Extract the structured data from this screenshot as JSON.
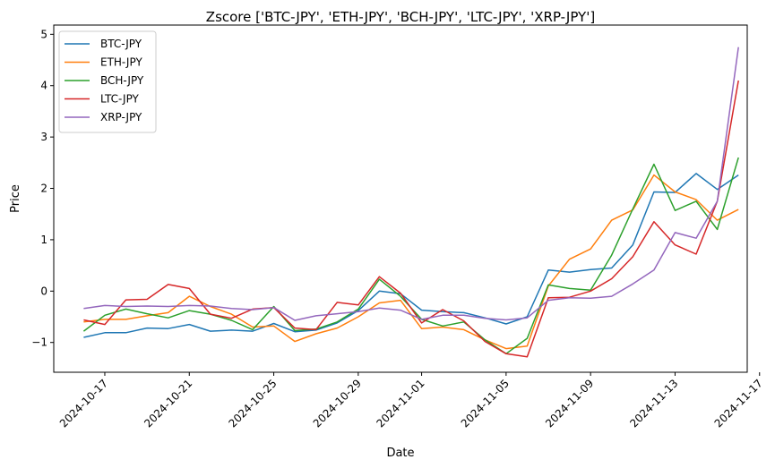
{
  "chart_data": {
    "type": "line",
    "title": "Zscore ['BTC-JPY', 'ETH-JPY', 'BCH-JPY', 'LTC-JPY', 'XRP-JPY']",
    "xlabel": "Date",
    "ylabel": "Price",
    "x_ticks": [
      "2024-10-17",
      "2024-10-21",
      "2024-10-25",
      "2024-10-29",
      "2024-11-01",
      "2024-11-05",
      "2024-11-09",
      "2024-11-13",
      "2024-11-17"
    ],
    "y_ticks": [
      "−1",
      "0",
      "1",
      "2",
      "3",
      "4",
      "5"
    ],
    "ylim": [
      -1.58,
      5.18
    ],
    "xlim": [
      "2024-10-14T14:00",
      "2024-11-16T10:00"
    ],
    "x": [
      "2024-10-16",
      "2024-10-17",
      "2024-10-18",
      "2024-10-19",
      "2024-10-20",
      "2024-10-21",
      "2024-10-22",
      "2024-10-23",
      "2024-10-24",
      "2024-10-25",
      "2024-10-26",
      "2024-10-27",
      "2024-10-28",
      "2024-10-29",
      "2024-10-30",
      "2024-10-31",
      "2024-11-01",
      "2024-11-02",
      "2024-11-03",
      "2024-11-04",
      "2024-11-05",
      "2024-11-06",
      "2024-11-07",
      "2024-11-08",
      "2024-11-09",
      "2024-11-10",
      "2024-11-11",
      "2024-11-12",
      "2024-11-13",
      "2024-11-14",
      "2024-11-15",
      "2024-11-16"
    ],
    "legend_position": "top-left",
    "grid": false,
    "series": [
      {
        "name": "BTC-JPY",
        "color": "#1f77b4",
        "values": [
          -0.9,
          -0.81,
          -0.81,
          -0.72,
          -0.73,
          -0.65,
          -0.78,
          -0.76,
          -0.78,
          -0.63,
          -0.79,
          -0.76,
          -0.62,
          -0.38,
          0.0,
          -0.05,
          -0.37,
          -0.4,
          -0.42,
          -0.52,
          -0.64,
          -0.5,
          0.41,
          0.37,
          0.42,
          0.45,
          0.9,
          1.93,
          1.92,
          2.29,
          1.98,
          2.26
        ]
      },
      {
        "name": "ETH-JPY",
        "color": "#ff7f0e",
        "values": [
          -0.6,
          -0.55,
          -0.55,
          -0.48,
          -0.42,
          -0.1,
          -0.3,
          -0.45,
          -0.7,
          -0.68,
          -0.98,
          -0.83,
          -0.72,
          -0.5,
          -0.23,
          -0.18,
          -0.73,
          -0.7,
          -0.75,
          -0.95,
          -1.12,
          -1.07,
          0.1,
          0.62,
          0.82,
          1.38,
          1.58,
          2.26,
          1.93,
          1.78,
          1.38,
          1.59
        ]
      },
      {
        "name": "BCH-JPY",
        "color": "#2ca02c",
        "values": [
          -0.78,
          -0.47,
          -0.35,
          -0.44,
          -0.52,
          -0.38,
          -0.45,
          -0.57,
          -0.75,
          -0.3,
          -0.77,
          -0.74,
          -0.6,
          -0.35,
          0.23,
          -0.1,
          -0.55,
          -0.68,
          -0.6,
          -0.95,
          -1.22,
          -0.92,
          0.12,
          0.05,
          0.02,
          0.7,
          1.6,
          2.47,
          1.57,
          1.75,
          1.2,
          2.6
        ]
      },
      {
        "name": "LTC-JPY",
        "color": "#d62728",
        "values": [
          -0.56,
          -0.65,
          -0.17,
          -0.16,
          0.13,
          0.05,
          -0.45,
          -0.53,
          -0.35,
          -0.32,
          -0.72,
          -0.75,
          -0.22,
          -0.27,
          0.28,
          -0.04,
          -0.62,
          -0.36,
          -0.58,
          -0.98,
          -1.22,
          -1.28,
          -0.13,
          -0.12,
          0.0,
          0.24,
          0.67,
          1.35,
          0.9,
          0.72,
          1.75,
          4.1
        ]
      },
      {
        "name": "XRP-JPY",
        "color": "#9467bd",
        "values": [
          -0.34,
          -0.28,
          -0.3,
          -0.29,
          -0.3,
          -0.28,
          -0.29,
          -0.34,
          -0.36,
          -0.32,
          -0.57,
          -0.48,
          -0.44,
          -0.4,
          -0.33,
          -0.37,
          -0.55,
          -0.47,
          -0.47,
          -0.53,
          -0.56,
          -0.52,
          -0.18,
          -0.13,
          -0.14,
          -0.1,
          0.14,
          0.41,
          1.14,
          1.03,
          1.75,
          4.75
        ]
      }
    ]
  }
}
